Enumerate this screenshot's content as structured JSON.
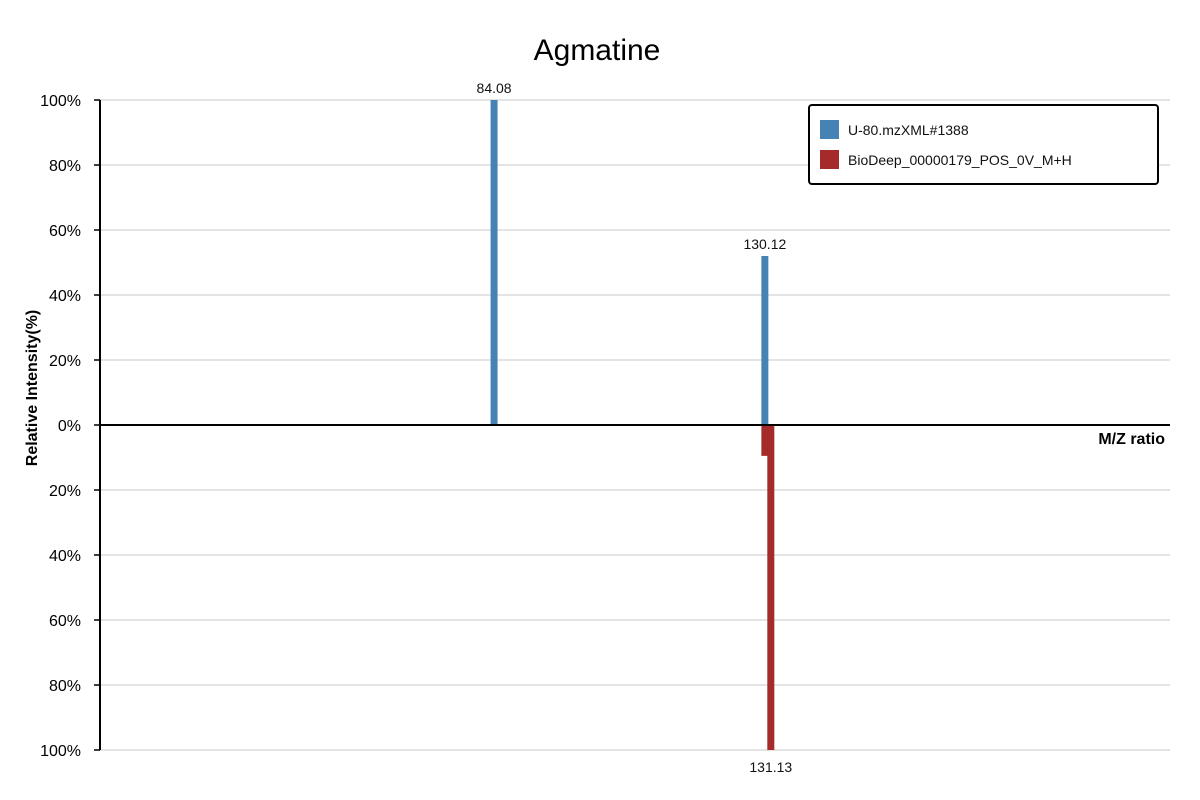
{
  "chart_data": {
    "type": "bar",
    "title": "Agmatine",
    "xlabel": "M/Z ratio",
    "ylabel": "Relative Intensity(%)",
    "xlim": [
      17.08,
      199.0
    ],
    "ylim": [
      -100,
      100
    ],
    "yticks": [
      100,
      80,
      60,
      40,
      20,
      0,
      -20,
      -40,
      -60,
      -80,
      -100
    ],
    "ytick_labels": [
      "100%",
      "80%",
      "60%",
      "40%",
      "20%",
      "0%",
      "20%",
      "40%",
      "60%",
      "80%",
      "100%"
    ],
    "grid": true,
    "legend_position": "top-right",
    "series": [
      {
        "name": "U-80.mzXML#1388",
        "color": "#4682b4",
        "direction": "up",
        "peaks": [
          {
            "mz": 84.08,
            "intensity": 100,
            "label": "84.08"
          },
          {
            "mz": 130.12,
            "intensity": 52,
            "label": "130.12"
          }
        ]
      },
      {
        "name": "BioDeep_00000179_POS_0V_M+H",
        "color": "#a52a2a",
        "direction": "down",
        "peaks": [
          {
            "mz": 130.12,
            "intensity": 9.5,
            "label": ""
          },
          {
            "mz": 131.13,
            "intensity": 100,
            "label": "131.13"
          }
        ]
      }
    ]
  }
}
